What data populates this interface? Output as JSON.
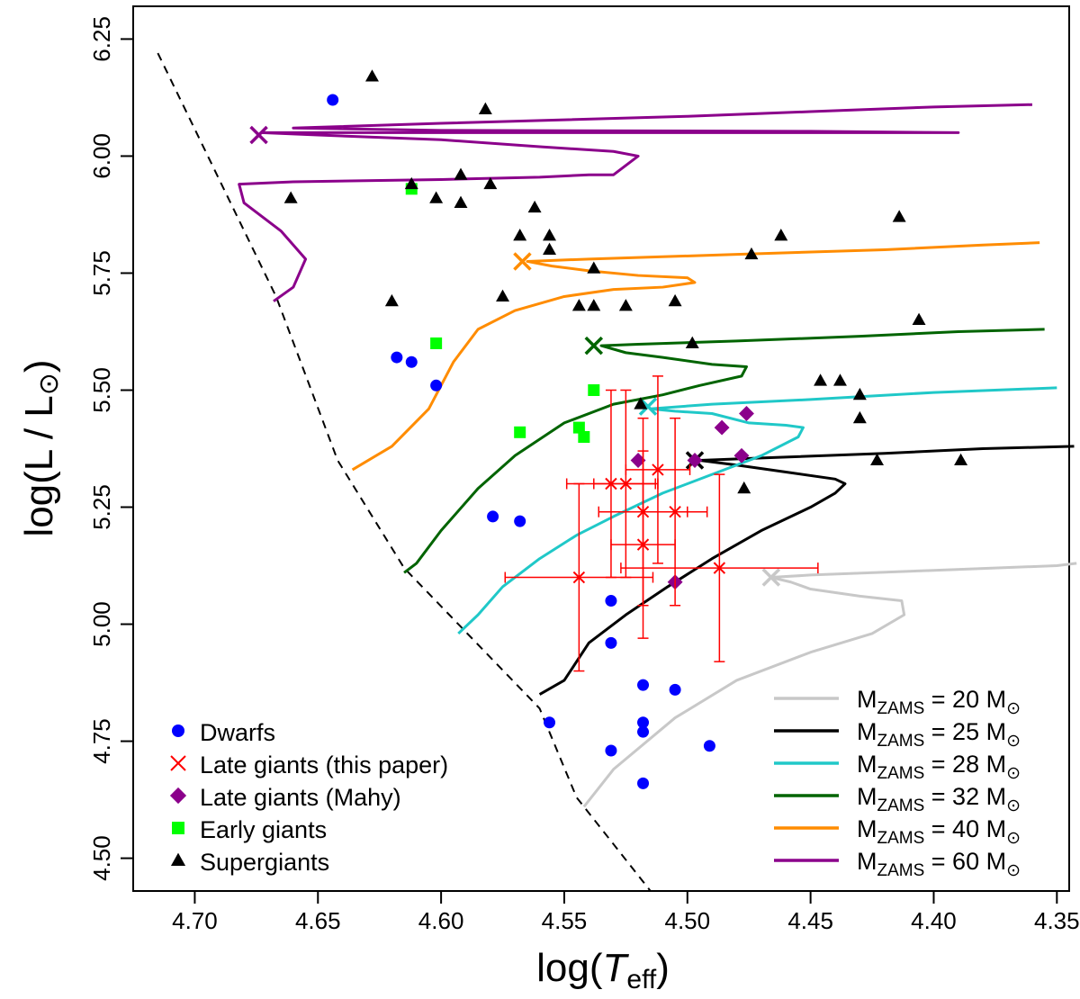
{
  "chart_data": {
    "type": "scatter",
    "title": "",
    "xlabel": {
      "prefix": "log(",
      "var": "T",
      "sub": "eff",
      "suffix": ")"
    },
    "ylabel": {
      "prefix": "log(L / L",
      "sun": "⊙",
      "suffix": ")"
    },
    "xlim": [
      4.725,
      4.345
    ],
    "ylim": [
      4.43,
      6.32
    ],
    "xticks": [
      4.7,
      4.65,
      4.6,
      4.55,
      4.5,
      4.45,
      4.4,
      4.35
    ],
    "xtick_labels": [
      "4.70",
      "4.65",
      "4.60",
      "4.55",
      "4.50",
      "4.45",
      "4.40",
      "4.35"
    ],
    "yticks": [
      4.5,
      4.75,
      5.0,
      5.25,
      5.5,
      5.75,
      6.0,
      6.25
    ],
    "ytick_labels": [
      "4.50",
      "4.75",
      "5.00",
      "5.25",
      "5.50",
      "5.75",
      "6.00",
      "6.25"
    ],
    "zams_line": [
      [
        4.715,
        6.22
      ],
      [
        4.667,
        5.7
      ],
      [
        4.642,
        5.35
      ],
      [
        4.615,
        5.12
      ],
      [
        4.56,
        4.82
      ],
      [
        4.545,
        4.63
      ],
      [
        4.515,
        4.43
      ]
    ],
    "series": [
      {
        "name": "Dwarfs",
        "marker": "circle",
        "color": "#0000ff",
        "points": [
          [
            4.644,
            6.12
          ],
          [
            4.618,
            5.57
          ],
          [
            4.612,
            5.56
          ],
          [
            4.602,
            5.51
          ],
          [
            4.579,
            5.23
          ],
          [
            4.568,
            5.22
          ],
          [
            4.531,
            5.05
          ],
          [
            4.531,
            4.96
          ],
          [
            4.518,
            4.87
          ],
          [
            4.518,
            4.79
          ],
          [
            4.518,
            4.77
          ],
          [
            4.505,
            4.86
          ],
          [
            4.556,
            4.79
          ],
          [
            4.531,
            4.73
          ],
          [
            4.491,
            4.74
          ],
          [
            4.518,
            4.66
          ]
        ]
      },
      {
        "name": "Late giants (this paper)",
        "marker": "x",
        "color": "#ff0000",
        "points": [
          {
            "x": 4.531,
            "y": 5.3,
            "xerr": 0.018,
            "yerr": 0.2
          },
          {
            "x": 4.525,
            "y": 5.3,
            "xerr": 0.013,
            "yerr": 0.2
          },
          {
            "x": 4.512,
            "y": 5.33,
            "xerr": 0.013,
            "yerr": 0.2
          },
          {
            "x": 4.518,
            "y": 5.24,
            "xerr": 0.018,
            "yerr": 0.2
          },
          {
            "x": 4.505,
            "y": 5.24,
            "xerr": 0.013,
            "yerr": 0.2
          },
          {
            "x": 4.518,
            "y": 5.17,
            "xerr": 0.013,
            "yerr": 0.2
          },
          {
            "x": 4.544,
            "y": 5.1,
            "xerr": 0.03,
            "yerr": 0.2
          },
          {
            "x": 4.487,
            "y": 5.12,
            "xerr": 0.04,
            "yerr": 0.2
          }
        ]
      },
      {
        "name": "Late giants (Mahy)",
        "marker": "diamond",
        "color": "#8b008b",
        "points": [
          [
            4.52,
            5.35
          ],
          [
            4.497,
            5.35
          ],
          [
            4.486,
            5.42
          ],
          [
            4.476,
            5.45
          ],
          [
            4.478,
            5.36
          ],
          [
            4.505,
            5.09
          ]
        ]
      },
      {
        "name": "Early giants",
        "marker": "square",
        "color": "#00ff00",
        "points": [
          [
            4.612,
            5.93
          ],
          [
            4.602,
            5.6
          ],
          [
            4.568,
            5.41
          ],
          [
            4.544,
            5.42
          ],
          [
            4.542,
            5.4
          ],
          [
            4.538,
            5.5
          ]
        ]
      },
      {
        "name": "Supergiants",
        "marker": "triangle",
        "color": "#000000",
        "points": [
          [
            4.628,
            6.17
          ],
          [
            4.582,
            6.1
          ],
          [
            4.661,
            5.91
          ],
          [
            4.612,
            5.94
          ],
          [
            4.602,
            5.91
          ],
          [
            4.592,
            5.9
          ],
          [
            4.592,
            5.96
          ],
          [
            4.58,
            5.94
          ],
          [
            4.562,
            5.89
          ],
          [
            4.568,
            5.83
          ],
          [
            4.556,
            5.83
          ],
          [
            4.556,
            5.8
          ],
          [
            4.538,
            5.76
          ],
          [
            4.474,
            5.79
          ],
          [
            4.462,
            5.83
          ],
          [
            4.414,
            5.87
          ],
          [
            4.62,
            5.69
          ],
          [
            4.575,
            5.7
          ],
          [
            4.544,
            5.68
          ],
          [
            4.538,
            5.68
          ],
          [
            4.525,
            5.68
          ],
          [
            4.505,
            5.69
          ],
          [
            4.498,
            5.6
          ],
          [
            4.406,
            5.65
          ],
          [
            4.519,
            5.47
          ],
          [
            4.446,
            5.52
          ],
          [
            4.438,
            5.52
          ],
          [
            4.43,
            5.49
          ],
          [
            4.43,
            5.44
          ],
          [
            4.423,
            5.35
          ],
          [
            4.389,
            5.35
          ],
          [
            4.477,
            5.29
          ]
        ]
      }
    ],
    "tracks": [
      {
        "name": "M_ZAMS = 20",
        "color": "#c8c8c8",
        "mass": "20",
        "points": [
          [
            4.542,
            4.61
          ],
          [
            4.53,
            4.69
          ],
          [
            4.505,
            4.8
          ],
          [
            4.48,
            4.88
          ],
          [
            4.45,
            4.94
          ],
          [
            4.425,
            4.98
          ],
          [
            4.412,
            5.02
          ],
          [
            4.413,
            5.05
          ],
          [
            4.43,
            5.06
          ],
          [
            4.45,
            5.075
          ],
          [
            4.458,
            5.09
          ],
          [
            4.466,
            5.1
          ],
          [
            4.45,
            5.105
          ],
          [
            4.4,
            5.115
          ],
          [
            4.35,
            5.125
          ],
          [
            4.342,
            5.13
          ]
        ],
        "cross": [
          4.466,
          5.1
        ]
      },
      {
        "name": "M_ZAMS = 25",
        "color": "#000000",
        "mass": "25",
        "points": [
          [
            4.56,
            4.85
          ],
          [
            4.55,
            4.88
          ],
          [
            4.54,
            4.96
          ],
          [
            4.525,
            5.02
          ],
          [
            4.508,
            5.08
          ],
          [
            4.49,
            5.14
          ],
          [
            4.47,
            5.2
          ],
          [
            4.45,
            5.25
          ],
          [
            4.44,
            5.28
          ],
          [
            4.436,
            5.3
          ],
          [
            4.44,
            5.31
          ],
          [
            4.46,
            5.325
          ],
          [
            4.48,
            5.34
          ],
          [
            4.495,
            5.35
          ],
          [
            4.47,
            5.355
          ],
          [
            4.42,
            5.365
          ],
          [
            4.38,
            5.375
          ],
          [
            4.343,
            5.38
          ]
        ],
        "cross": [
          4.497,
          5.35
        ]
      },
      {
        "name": "M_ZAMS = 28",
        "color": "#20c8c8",
        "mass": "28",
        "points": [
          [
            4.593,
            4.98
          ],
          [
            4.585,
            5.02
          ],
          [
            4.575,
            5.08
          ],
          [
            4.56,
            5.14
          ],
          [
            4.545,
            5.19
          ],
          [
            4.53,
            5.23
          ],
          [
            4.51,
            5.28
          ],
          [
            4.49,
            5.32
          ],
          [
            4.47,
            5.36
          ],
          [
            4.455,
            5.4
          ],
          [
            4.453,
            5.42
          ],
          [
            4.46,
            5.425
          ],
          [
            4.475,
            5.43
          ],
          [
            4.49,
            5.45
          ],
          [
            4.505,
            5.455
          ],
          [
            4.515,
            5.46
          ],
          [
            4.49,
            5.47
          ],
          [
            4.45,
            5.48
          ],
          [
            4.4,
            5.495
          ],
          [
            4.35,
            5.505
          ]
        ],
        "cross": [
          4.516,
          5.465
        ]
      },
      {
        "name": "M_ZAMS = 32",
        "color": "#006400",
        "mass": "32",
        "points": [
          [
            4.615,
            5.11
          ],
          [
            4.61,
            5.13
          ],
          [
            4.6,
            5.2
          ],
          [
            4.585,
            5.29
          ],
          [
            4.57,
            5.36
          ],
          [
            4.55,
            5.43
          ],
          [
            4.53,
            5.47
          ],
          [
            4.51,
            5.49
          ],
          [
            4.495,
            5.51
          ],
          [
            4.478,
            5.53
          ],
          [
            4.476,
            5.55
          ],
          [
            4.49,
            5.555
          ],
          [
            4.51,
            5.57
          ],
          [
            4.525,
            5.58
          ],
          [
            4.535,
            5.595
          ],
          [
            4.52,
            5.598
          ],
          [
            4.48,
            5.605
          ],
          [
            4.43,
            5.615
          ],
          [
            4.39,
            5.625
          ],
          [
            4.355,
            5.63
          ]
        ],
        "cross": [
          4.538,
          5.595
        ]
      },
      {
        "name": "M_ZAMS = 40",
        "color": "#ff8c00",
        "mass": "40",
        "points": [
          [
            4.636,
            5.33
          ],
          [
            4.62,
            5.38
          ],
          [
            4.605,
            5.46
          ],
          [
            4.595,
            5.56
          ],
          [
            4.585,
            5.63
          ],
          [
            4.57,
            5.67
          ],
          [
            4.55,
            5.7
          ],
          [
            4.53,
            5.715
          ],
          [
            4.51,
            5.72
          ],
          [
            4.497,
            5.73
          ],
          [
            4.5,
            5.74
          ],
          [
            4.52,
            5.745
          ],
          [
            4.54,
            5.755
          ],
          [
            4.555,
            5.765
          ],
          [
            4.565,
            5.775
          ],
          [
            4.54,
            5.78
          ],
          [
            4.48,
            5.79
          ],
          [
            4.42,
            5.8
          ],
          [
            4.38,
            5.81
          ],
          [
            4.357,
            5.815
          ]
        ],
        "cross": [
          4.567,
          5.775
        ]
      },
      {
        "name": "M_ZAMS = 60",
        "color": "#8b008b",
        "mass": "60",
        "points": [
          [
            4.668,
            5.69
          ],
          [
            4.66,
            5.72
          ],
          [
            4.655,
            5.78
          ],
          [
            4.665,
            5.84
          ],
          [
            4.68,
            5.9
          ],
          [
            4.682,
            5.94
          ],
          [
            4.66,
            5.945
          ],
          [
            4.6,
            5.95
          ],
          [
            4.56,
            5.955
          ],
          [
            4.54,
            5.96
          ],
          [
            4.53,
            5.96
          ],
          [
            4.525,
            5.98
          ],
          [
            4.52,
            6.0
          ],
          [
            4.53,
            6.01
          ],
          [
            4.56,
            6.02
          ],
          [
            4.6,
            6.035
          ],
          [
            4.65,
            6.045
          ],
          [
            4.673,
            6.05
          ],
          [
            4.58,
            6.05
          ],
          [
            4.45,
            6.05
          ],
          [
            4.39,
            6.05
          ],
          [
            4.45,
            6.053
          ],
          [
            4.6,
            6.055
          ],
          [
            4.66,
            6.06
          ],
          [
            4.6,
            6.07
          ],
          [
            4.5,
            6.085
          ],
          [
            4.45,
            6.095
          ],
          [
            4.4,
            6.105
          ],
          [
            4.36,
            6.11
          ]
        ],
        "cross": [
          4.674,
          6.045
        ]
      }
    ],
    "legend_left": [
      "Dwarfs",
      "Late giants (this paper)",
      "Late giants (Mahy)",
      "Early giants",
      "Supergiants"
    ],
    "legend_right": {
      "label_prefix": "M",
      "label_sub": "ZAMS",
      "equals": " = ",
      "unit": " M",
      "sun": "⊙"
    }
  }
}
